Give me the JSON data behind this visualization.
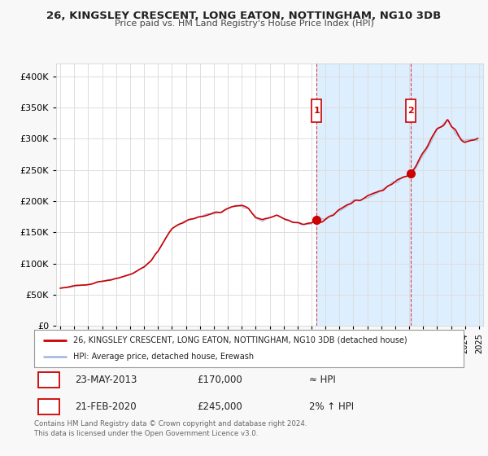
{
  "title": "26, KINGSLEY CRESCENT, LONG EATON, NOTTINGHAM, NG10 3DB",
  "subtitle": "Price paid vs. HM Land Registry's House Price Index (HPI)",
  "bg_color": "#f8f8f8",
  "plot_bg": "#ffffff",
  "highlight_color": "#ddeeff",
  "line_color_hpi": "#aabbdd",
  "line_color_price": "#cc0000",
  "vline_color": "#cc0000",
  "transaction1": {
    "date": "23-MAY-2013",
    "price": 170000,
    "label": "1",
    "note": "≈ HPI",
    "year": 2013.38
  },
  "transaction2": {
    "date": "21-FEB-2020",
    "price": 245000,
    "label": "2",
    "note": "2% ↑ HPI",
    "year": 2020.12
  },
  "legend_entry1": "26, KINGSLEY CRESCENT, LONG EATON, NOTTINGHAM, NG10 3DB (detached house)",
  "legend_entry2": "HPI: Average price, detached house, Erewash",
  "footer": "Contains HM Land Registry data © Crown copyright and database right 2024.\nThis data is licensed under the Open Government Licence v3.0.",
  "ylim": [
    0,
    420000
  ],
  "yticks": [
    0,
    50000,
    100000,
    150000,
    200000,
    250000,
    300000,
    350000,
    400000
  ],
  "ytick_labels": [
    "£0",
    "£50K",
    "£100K",
    "£150K",
    "£200K",
    "£250K",
    "£300K",
    "£350K",
    "£400K"
  ]
}
